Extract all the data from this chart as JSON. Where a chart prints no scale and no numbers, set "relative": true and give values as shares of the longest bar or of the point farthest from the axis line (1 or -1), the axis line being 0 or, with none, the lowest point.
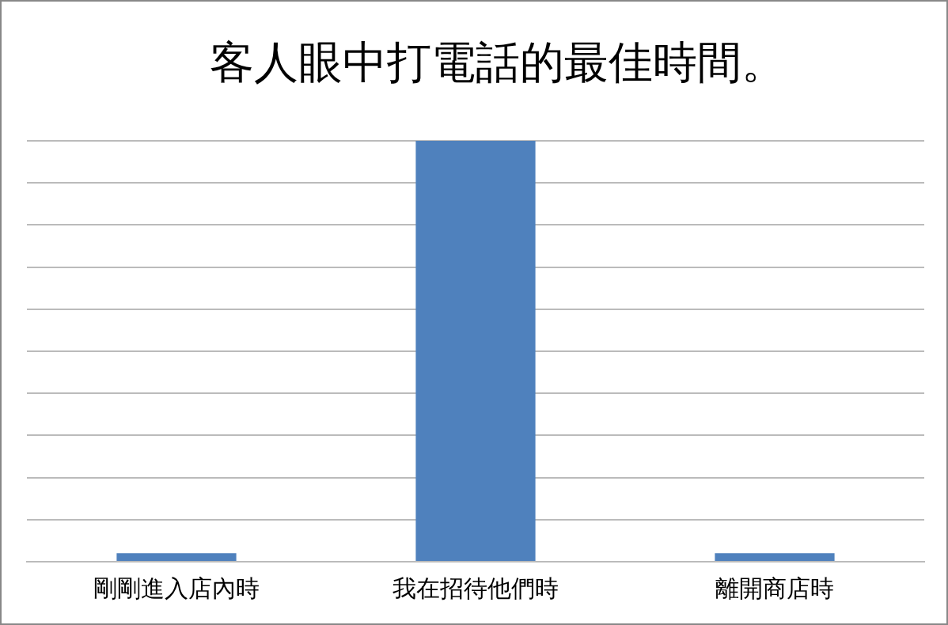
{
  "chart_data": {
    "type": "bar",
    "title": "客人眼中打電話的最佳時間。",
    "categories": [
      "剛剛進入店內時",
      "我在招待他們時",
      "離開商店時"
    ],
    "values": [
      0.02,
      1,
      0.02
    ],
    "color": "#4f81bd",
    "relative": true,
    "grid": "y",
    "legend": false
  }
}
